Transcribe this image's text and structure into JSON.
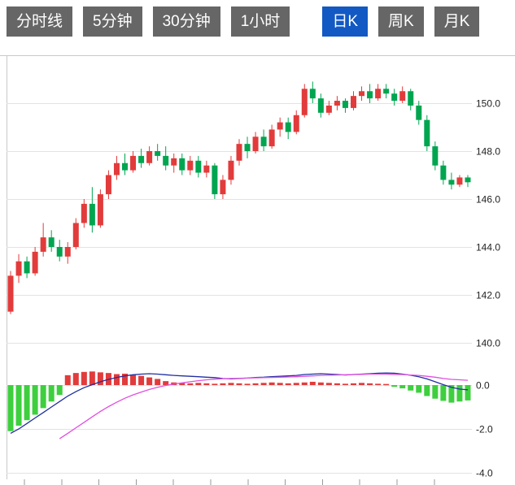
{
  "tabs": [
    {
      "label": "分时线",
      "active": false
    },
    {
      "label": "5分钟",
      "active": false
    },
    {
      "label": "30分钟",
      "active": false
    },
    {
      "label": "1小时",
      "active": false
    },
    {
      "label": "日K",
      "active": true
    },
    {
      "label": "周K",
      "active": false
    },
    {
      "label": "月K",
      "active": false
    }
  ],
  "colors": {
    "up_candle": "#e23b3b",
    "down_candle": "#00a550",
    "hist_negative": "#3ecf3e",
    "dif_line": "#1f2fa0",
    "dea_line": "#e14fe1",
    "grid": "#e3e3e3",
    "border": "#c9c9c9",
    "tick": "#999999",
    "axis_text": "#222222",
    "tab_bg": "#666666",
    "tab_active_bg": "#1259c3",
    "tab_text": "#ffffff"
  },
  "price_axis_labels": [
    "150.0",
    "148.0",
    "146.0",
    "144.0",
    "142.0",
    "140.0"
  ],
  "indicator_axis_labels": [
    "0.0",
    "-2.0",
    "-4.0"
  ],
  "chart_data": {
    "type": "candlestick",
    "color_convention": "china: red = bullish (close>=open), green = bearish",
    "price_panel": {
      "ylim": [
        139.1,
        152.0
      ],
      "tick_values": [
        150,
        148,
        146,
        144,
        142,
        140
      ],
      "grid": true,
      "axis_side": "right"
    },
    "indicator_panel": {
      "name": "MACD",
      "ylim": [
        -4.6,
        0.9
      ],
      "tick_values": [
        0,
        -2,
        -4
      ],
      "grid": true,
      "axis_side": "right"
    },
    "candles_ohlc": [
      [
        141.3,
        143.0,
        141.2,
        142.8
      ],
      [
        142.8,
        143.7,
        142.5,
        143.4
      ],
      [
        143.4,
        143.6,
        142.7,
        142.9
      ],
      [
        142.9,
        144.0,
        142.8,
        143.8
      ],
      [
        143.8,
        145.0,
        143.6,
        144.4
      ],
      [
        144.4,
        144.7,
        143.8,
        144.0
      ],
      [
        144.0,
        144.3,
        143.4,
        143.6
      ],
      [
        143.6,
        144.2,
        143.3,
        144.0
      ],
      [
        144.0,
        145.2,
        143.9,
        145.0
      ],
      [
        145.0,
        146.0,
        144.8,
        145.8
      ],
      [
        145.8,
        146.5,
        144.6,
        144.9
      ],
      [
        144.9,
        146.4,
        144.8,
        146.2
      ],
      [
        146.2,
        147.2,
        146.0,
        147.0
      ],
      [
        147.0,
        147.8,
        146.8,
        147.5
      ],
      [
        147.5,
        147.9,
        147.0,
        147.2
      ],
      [
        147.2,
        148.0,
        147.1,
        147.8
      ],
      [
        147.8,
        148.1,
        147.3,
        147.5
      ],
      [
        147.5,
        148.2,
        147.4,
        148.0
      ],
      [
        148.0,
        148.3,
        147.6,
        147.8
      ],
      [
        147.8,
        148.2,
        147.2,
        147.4
      ],
      [
        147.4,
        147.9,
        147.1,
        147.7
      ],
      [
        147.7,
        147.9,
        147.0,
        147.2
      ],
      [
        147.2,
        147.8,
        147.0,
        147.6
      ],
      [
        147.6,
        147.8,
        146.9,
        147.1
      ],
      [
        147.1,
        147.6,
        146.9,
        147.4
      ],
      [
        147.4,
        147.5,
        146.0,
        146.2
      ],
      [
        146.2,
        147.0,
        146.0,
        146.8
      ],
      [
        146.8,
        147.8,
        146.6,
        147.6
      ],
      [
        147.6,
        148.5,
        147.4,
        148.3
      ],
      [
        148.3,
        148.6,
        147.7,
        148.0
      ],
      [
        148.0,
        148.8,
        147.9,
        148.6
      ],
      [
        148.6,
        148.9,
        148.0,
        148.2
      ],
      [
        148.2,
        149.1,
        148.1,
        148.9
      ],
      [
        148.9,
        149.4,
        148.6,
        149.2
      ],
      [
        149.2,
        149.4,
        148.5,
        148.8
      ],
      [
        148.8,
        149.7,
        148.7,
        149.5
      ],
      [
        149.5,
        150.8,
        149.4,
        150.6
      ],
      [
        150.6,
        150.9,
        150.0,
        150.2
      ],
      [
        150.2,
        150.4,
        149.4,
        149.6
      ],
      [
        149.6,
        150.1,
        149.5,
        149.9
      ],
      [
        149.9,
        150.3,
        149.7,
        150.1
      ],
      [
        150.1,
        150.2,
        149.6,
        149.8
      ],
      [
        149.8,
        150.5,
        149.7,
        150.3
      ],
      [
        150.3,
        150.7,
        150.1,
        150.5
      ],
      [
        150.5,
        150.8,
        150.0,
        150.2
      ],
      [
        150.2,
        150.8,
        150.1,
        150.6
      ],
      [
        150.6,
        150.8,
        150.2,
        150.4
      ],
      [
        150.4,
        150.6,
        149.9,
        150.1
      ],
      [
        150.1,
        150.7,
        150.0,
        150.5
      ],
      [
        150.5,
        150.6,
        149.7,
        149.9
      ],
      [
        149.9,
        150.1,
        149.1,
        149.3
      ],
      [
        149.3,
        149.5,
        148.0,
        148.2
      ],
      [
        148.2,
        148.4,
        147.2,
        147.4
      ],
      [
        147.4,
        147.6,
        146.6,
        146.8
      ],
      [
        146.8,
        147.1,
        146.4,
        146.6
      ],
      [
        146.6,
        147.0,
        146.5,
        146.9
      ],
      [
        146.9,
        147.0,
        146.5,
        146.7
      ]
    ],
    "macd": {
      "histogram": [
        -2.1,
        -1.85,
        -1.6,
        -1.35,
        -1.05,
        -0.75,
        -0.45,
        0.45,
        0.55,
        0.6,
        0.62,
        0.58,
        0.55,
        0.5,
        0.52,
        0.48,
        0.42,
        0.35,
        0.28,
        0.18,
        0.12,
        0.1,
        0.08,
        0.1,
        0.08,
        0.06,
        0.08,
        0.1,
        0.08,
        0.06,
        0.08,
        0.1,
        0.12,
        0.1,
        0.08,
        0.1,
        0.12,
        0.15,
        0.12,
        0.1,
        0.08,
        0.06,
        0.08,
        0.1,
        0.08,
        0.06,
        0.05,
        -0.08,
        -0.15,
        -0.25,
        -0.35,
        -0.5,
        -0.62,
        -0.72,
        -0.8,
        -0.75,
        -0.7
      ],
      "dif": [
        -2.2,
        -2.0,
        -1.75,
        -1.5,
        -1.25,
        -1.0,
        -0.75,
        -0.5,
        -0.3,
        -0.12,
        0.02,
        0.15,
        0.26,
        0.35,
        0.42,
        0.47,
        0.5,
        0.52,
        0.5,
        0.47,
        0.44,
        0.42,
        0.4,
        0.38,
        0.36,
        0.34,
        0.3,
        0.28,
        0.3,
        0.32,
        0.35,
        0.36,
        0.38,
        0.4,
        0.42,
        0.44,
        0.48,
        0.5,
        0.52,
        0.5,
        0.48,
        0.46,
        0.48,
        0.5,
        0.52,
        0.54,
        0.55,
        0.54,
        0.5,
        0.45,
        0.38,
        0.28,
        0.15,
        0.02,
        -0.1,
        -0.18,
        -0.22
      ],
      "dea": [
        null,
        null,
        null,
        null,
        null,
        null,
        -2.45,
        -2.2,
        -1.95,
        -1.7,
        -1.45,
        -1.2,
        -0.98,
        -0.78,
        -0.6,
        -0.45,
        -0.32,
        -0.2,
        -0.1,
        -0.02,
        0.05,
        0.1,
        0.15,
        0.2,
        0.24,
        0.27,
        0.29,
        0.3,
        0.31,
        0.32,
        0.33,
        0.34,
        0.35,
        0.36,
        0.37,
        0.38,
        0.4,
        0.42,
        0.44,
        0.45,
        0.46,
        0.47,
        0.48,
        0.49,
        0.5,
        0.5,
        0.5,
        0.49,
        0.48,
        0.46,
        0.44,
        0.4,
        0.36,
        0.3,
        0.26,
        0.24,
        0.22
      ]
    }
  }
}
